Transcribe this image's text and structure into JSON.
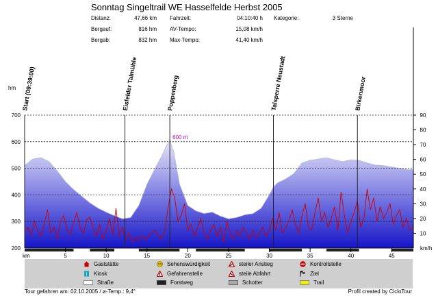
{
  "title": "Sonntag Singeltrail WE Hasselfelde Herbst 2005",
  "stats": [
    {
      "label": "Distanz:",
      "value": "47,66 km"
    },
    {
      "label": "Bergauf:",
      "value": "816 hm"
    },
    {
      "label": "Bergab:",
      "value": "832 hm"
    },
    {
      "label": "Fahrzeit:",
      "value": "04:10:40 h"
    },
    {
      "label": "AV-Tempo:",
      "value": "15,08 km/h"
    },
    {
      "label": "Max-Tempo:",
      "value": "41,40 km/h"
    },
    {
      "label": "Kategorie:",
      "value": "3 Sterne"
    }
  ],
  "chart_data": {
    "type": "area",
    "xlabel": "km",
    "ylabel_left": "hm",
    "ylabel_right": "km/h",
    "xlim": [
      0,
      47.66
    ],
    "ylim_left": [
      200,
      700
    ],
    "ylim_right": [
      0,
      90
    ],
    "xticks": [
      5,
      10,
      15,
      20,
      25,
      30,
      35,
      40,
      45
    ],
    "yticks_left": [
      200,
      300,
      400,
      500,
      600,
      700
    ],
    "yticks_right": [
      10,
      20,
      30,
      40,
      50,
      60,
      70,
      80,
      90
    ],
    "grid": true,
    "peak_label": "600 m",
    "peak_x": 17.8,
    "waypoints": [
      {
        "name": "Start (09:39:00)",
        "x": 0
      },
      {
        "name": "Eisfelder Talmühle",
        "x": 12.3
      },
      {
        "name": "Poppenberg",
        "x": 17.8
      },
      {
        "name": "Talsperre Neustadt",
        "x": 30.5
      },
      {
        "name": "Birkenmoor",
        "x": 40.8
      }
    ],
    "series": [
      {
        "kind": "elevation",
        "unit": "m",
        "color": "#2b2bd8",
        "x": [
          0,
          1,
          2,
          3,
          4,
          5,
          6,
          7,
          8,
          9,
          10,
          11,
          12,
          13,
          14,
          15,
          16,
          16.8,
          17.4,
          17.8,
          18.3,
          19,
          20,
          21,
          22,
          23,
          24,
          25,
          26,
          27,
          28,
          29,
          30,
          30.5,
          31,
          32,
          33,
          34,
          35,
          36,
          37,
          38,
          39,
          40,
          41,
          42,
          43,
          44,
          45,
          46,
          47,
          47.66
        ],
        "values": [
          510,
          535,
          540,
          525,
          490,
          450,
          420,
          395,
          370,
          350,
          335,
          322,
          310,
          315,
          360,
          440,
          500,
          545,
          585,
          605,
          560,
          440,
          360,
          340,
          330,
          335,
          320,
          310,
          315,
          325,
          330,
          350,
          400,
          430,
          445,
          460,
          480,
          520,
          530,
          535,
          540,
          532,
          525,
          532,
          530,
          520,
          512,
          510,
          505,
          500,
          495,
          495
        ]
      },
      {
        "kind": "speed",
        "unit": "km/h",
        "color": "#cc0000",
        "x": [
          0,
          0.4,
          0.8,
          1.2,
          1.6,
          2,
          2.4,
          2.8,
          3.2,
          3.6,
          4,
          4.4,
          4.8,
          5.2,
          5.6,
          6,
          6.4,
          6.8,
          7.2,
          7.6,
          8,
          8.4,
          8.8,
          9.2,
          9.6,
          10,
          10.4,
          10.8,
          11.2,
          11.6,
          12,
          12.4,
          12.8,
          13.2,
          13.6,
          14,
          14.4,
          14.8,
          15.2,
          15.6,
          16,
          16.4,
          16.8,
          17.2,
          17.6,
          18,
          18.4,
          18.8,
          19.2,
          19.6,
          20,
          20.4,
          20.8,
          21.2,
          21.6,
          22,
          22.4,
          22.8,
          23.2,
          23.6,
          24,
          24.4,
          24.8,
          25.2,
          25.6,
          26,
          26.4,
          26.8,
          27.2,
          27.6,
          28,
          28.4,
          28.8,
          29.2,
          29.6,
          30,
          30.4,
          30.8,
          31.2,
          31.6,
          32,
          32.4,
          32.8,
          33.2,
          33.6,
          34,
          34.4,
          34.8,
          35.2,
          35.6,
          36,
          36.4,
          36.8,
          37.2,
          37.6,
          38,
          38.4,
          38.8,
          39.2,
          39.6,
          40,
          40.4,
          40.8,
          41.2,
          41.6,
          42,
          42.4,
          42.8,
          43.2,
          43.6,
          44,
          44.4,
          44.8,
          45.2,
          45.6,
          46,
          46.4,
          46.8,
          47.2,
          47.66
        ],
        "values": [
          11,
          14,
          9,
          18,
          12,
          8,
          16,
          26,
          10,
          14,
          6,
          18,
          22,
          12,
          9,
          17,
          24,
          14,
          10,
          19,
          21,
          13,
          8,
          16,
          6,
          11,
          20,
          9,
          27,
          8,
          14,
          6,
          10,
          4,
          7,
          5,
          8,
          6,
          9,
          10,
          12,
          8,
          6,
          12,
          28,
          40,
          34,
          18,
          22,
          30,
          12,
          16,
          8,
          14,
          20,
          10,
          6,
          12,
          16,
          8,
          14,
          4,
          18,
          10,
          6,
          12,
          8,
          14,
          10,
          6,
          12,
          7,
          10,
          14,
          8,
          12,
          20,
          12,
          24,
          10,
          14,
          18,
          26,
          16,
          10,
          22,
          30,
          14,
          12,
          24,
          34,
          18,
          24,
          14,
          20,
          28,
          12,
          38,
          22,
          10,
          18,
          24,
          32,
          14,
          20,
          40,
          26,
          34,
          18,
          28,
          20,
          24,
          30,
          16,
          22,
          26,
          14,
          20,
          12,
          14
        ]
      }
    ]
  },
  "legend": [
    {
      "label": "Gaststätte",
      "icon": "house-icon",
      "color": "#cc0000"
    },
    {
      "label": "Sehenswürdigkeit",
      "icon": "sight-icon",
      "color": "#e0c000"
    },
    {
      "label": "steiler Anstieg",
      "icon": "warning-triangle-icon",
      "color": "#cc0000"
    },
    {
      "label": "Kontrollstelle",
      "icon": "stop-sign-icon",
      "color": "#cc0000"
    },
    {
      "label": "Kiosk",
      "icon": "kiosk-icon",
      "color": "#1aa0c0"
    },
    {
      "label": "Gefahrenstelle",
      "icon": "danger-triangle-icon",
      "color": "#cc0000"
    },
    {
      "label": "steile Abfahrt",
      "icon": "warning-triangle-icon",
      "color": "#cc0000"
    },
    {
      "label": "Ziel",
      "icon": "finish-flag-icon",
      "color": "#000000"
    },
    {
      "label": "Straße",
      "icon": "road-swatch-icon",
      "color": "#ffffff"
    },
    {
      "label": "Forstweg",
      "icon": "forest-road-swatch-icon",
      "color": "#202020"
    },
    {
      "label": "Schotter",
      "icon": "gravel-swatch-icon",
      "color": "#a8a8a8"
    },
    {
      "label": "Trail",
      "icon": "trail-swatch-icon",
      "color": "#f0f000"
    }
  ],
  "footer": {
    "left": "Tour gefahren am: 02.10.2005  /  ø-Temp.: 9,4°",
    "right": "Profil created by CicloTour"
  }
}
